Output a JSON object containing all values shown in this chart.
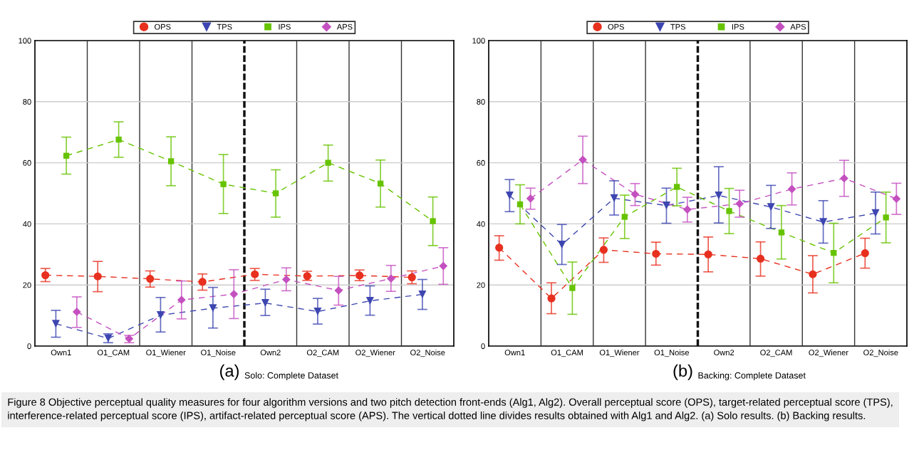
{
  "chart_data": [
    {
      "type": "line",
      "title": "(a) Solo: Complete Dataset",
      "categories": [
        "Own1",
        "O1_CAM",
        "O1_Wiener",
        "O1_Noise",
        "Own2",
        "O2_CAM",
        "O2_Wiener",
        "O2_Noise"
      ],
      "ylim": [
        0,
        100
      ],
      "yticks": [
        0,
        20,
        40,
        60,
        80,
        100
      ],
      "grid": "y",
      "legend": "top",
      "line_style": "dashed",
      "series": [
        {
          "name": "OPS",
          "color": "#e8301f",
          "marker": "circle",
          "values": [
            23.2,
            22.8,
            22.0,
            21.0,
            23.5,
            22.9,
            23.1,
            22.5
          ],
          "errors": [
            [
              21.1,
              25.4
            ],
            [
              17.8,
              27.7
            ],
            [
              19.3,
              24.6
            ],
            [
              18.3,
              23.6
            ],
            [
              21.5,
              25.4
            ],
            [
              21.5,
              24.5
            ],
            [
              21.4,
              24.9
            ],
            [
              20.4,
              24.6
            ]
          ]
        },
        {
          "name": "TPS",
          "color": "#3d46b0",
          "marker": "triangle",
          "values": [
            7.3,
            2.5,
            10.1,
            12.4,
            14.1,
            11.3,
            14.8,
            16.9
          ],
          "errors": [
            [
              2.9,
              11.7
            ],
            [
              1.1,
              4.0
            ],
            [
              4.6,
              15.9
            ],
            [
              5.9,
              19.2
            ],
            [
              10.0,
              18.6
            ],
            [
              7.2,
              15.6
            ],
            [
              10.1,
              19.7
            ],
            [
              12.0,
              21.8
            ]
          ]
        },
        {
          "name": "IPS",
          "color": "#66c300",
          "marker": "square",
          "values": [
            62.3,
            67.6,
            60.5,
            53.0,
            50.0,
            60.0,
            53.2,
            40.9
          ],
          "errors": [
            [
              56.3,
              68.4
            ],
            [
              61.8,
              73.4
            ],
            [
              52.5,
              68.5
            ],
            [
              43.4,
              62.7
            ],
            [
              42.2,
              57.7
            ],
            [
              54.0,
              65.8
            ],
            [
              45.5,
              60.9
            ],
            [
              32.9,
              48.8
            ]
          ]
        },
        {
          "name": "APS",
          "color": "#c450c0",
          "marker": "diamond",
          "values": [
            11.2,
            2.4,
            15.1,
            17.0,
            21.8,
            18.2,
            22.1,
            26.2
          ],
          "errors": [
            [
              6.1,
              16.1
            ],
            [
              1.1,
              3.5
            ],
            [
              8.9,
              21.3
            ],
            [
              9.0,
              25.0
            ],
            [
              18.1,
              25.6
            ],
            [
              13.4,
              22.8
            ],
            [
              17.9,
              26.4
            ],
            [
              20.2,
              32.2
            ]
          ]
        }
      ],
      "annotations": [
        "Figure 8 Objective perceptual quality measures for four algorithm versions and two pitch detection front-ends (Alg1, Alg2). Overall perceptual score (OPS), target-related perceptual score (TPS), interference-related perceptual score (IPS), artifact-related perceptual score (APS). The vertical dotted line divides results obtained with Alg1 and Alg2. (a) Solo results. (b) Backing results."
      ]
    },
    {
      "type": "line",
      "title": "(b) Backing: Complete Dataset",
      "categories": [
        "Own1",
        "O1_CAM",
        "O1_Wiener",
        "O1_Noise",
        "Own2",
        "O2_CAM",
        "O2_Wiener",
        "O2_Noise"
      ],
      "ylim": [
        0,
        100
      ],
      "yticks": [
        0,
        20,
        40,
        60,
        80,
        100
      ],
      "grid": "y",
      "legend": "top",
      "line_style": "dashed",
      "series": [
        {
          "name": "OPS",
          "color": "#e8301f",
          "marker": "circle",
          "values": [
            32.2,
            15.6,
            31.5,
            30.2,
            30.0,
            28.6,
            23.5,
            30.4
          ],
          "errors": [
            [
              28.1,
              36.1
            ],
            [
              10.6,
              20.7
            ],
            [
              27.4,
              35.4
            ],
            [
              26.5,
              34.0
            ],
            [
              24.3,
              35.7
            ],
            [
              22.9,
              34.1
            ],
            [
              17.4,
              29.6
            ],
            [
              25.5,
              35.3
            ]
          ]
        },
        {
          "name": "TPS",
          "color": "#3d46b0",
          "marker": "triangle",
          "values": [
            49.3,
            33.2,
            48.4,
            46.0,
            49.3,
            45.5,
            40.6,
            43.5
          ],
          "errors": [
            [
              44.0,
              54.5
            ],
            [
              26.7,
              39.8
            ],
            [
              42.9,
              54.1
            ],
            [
              40.2,
              51.7
            ],
            [
              40.3,
              58.7
            ],
            [
              38.5,
              52.6
            ],
            [
              33.7,
              47.6
            ],
            [
              36.7,
              50.4
            ]
          ]
        },
        {
          "name": "IPS",
          "color": "#66c300",
          "marker": "square",
          "values": [
            46.4,
            19.0,
            42.3,
            52.1,
            44.2,
            37.2,
            30.5,
            42.1
          ],
          "errors": [
            [
              40.0,
              52.8
            ],
            [
              10.4,
              27.5
            ],
            [
              35.2,
              49.4
            ],
            [
              45.9,
              58.2
            ],
            [
              36.8,
              51.6
            ],
            [
              28.5,
              46.0
            ],
            [
              20.7,
              40.2
            ],
            [
              33.8,
              50.4
            ]
          ]
        },
        {
          "name": "APS",
          "color": "#c450c0",
          "marker": "diamond",
          "values": [
            48.3,
            61.0,
            49.7,
            44.7,
            46.6,
            51.4,
            54.9,
            48.2
          ],
          "errors": [
            [
              44.8,
              51.7
            ],
            [
              53.2,
              68.7
            ],
            [
              46.0,
              53.2
            ],
            [
              40.6,
              48.7
            ],
            [
              42.2,
              51.0
            ],
            [
              46.2,
              56.7
            ],
            [
              49.0,
              60.8
            ],
            [
              43.1,
              53.3
            ]
          ]
        }
      ]
    }
  ]
}
